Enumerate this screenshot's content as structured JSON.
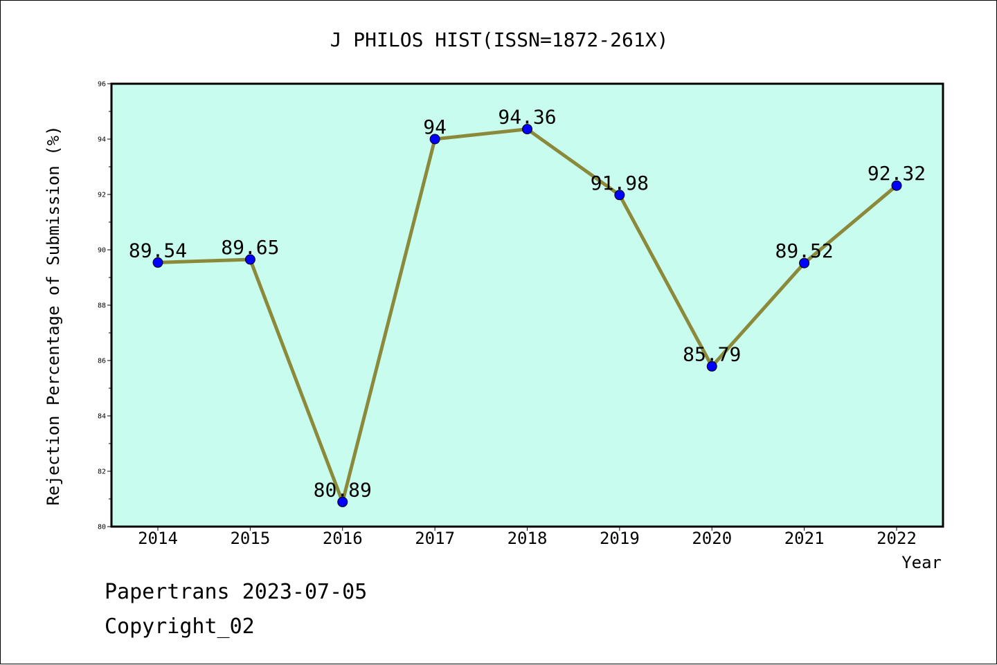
{
  "chart_data": {
    "type": "line",
    "title": "J PHILOS HIST(ISSN=1872-261X)",
    "xlabel": "Year",
    "ylabel": "Rejection Percentage of Submission (%)",
    "categories": [
      "2014",
      "2015",
      "2016",
      "2017",
      "2018",
      "2019",
      "2020",
      "2021",
      "2022"
    ],
    "values": [
      89.54,
      89.65,
      80.89,
      94,
      94.36,
      91.98,
      85.79,
      89.52,
      92.32
    ],
    "data_labels": [
      "89.54",
      "89.65",
      "80.89",
      "94",
      "94.36",
      "91.98",
      "85.79",
      "89.52",
      "92.32"
    ],
    "ylim": [
      80,
      96
    ],
    "yticks": [
      "80",
      "82",
      "84",
      "86",
      "88",
      "90",
      "92",
      "94",
      "96"
    ],
    "grid": false,
    "colors": {
      "plot_background": "#c8fcee",
      "line": "#8b8a3a",
      "marker": "#0000ff"
    }
  },
  "footer": {
    "line1": "Papertrans 2023-07-05",
    "line2": "Copyright_02"
  }
}
